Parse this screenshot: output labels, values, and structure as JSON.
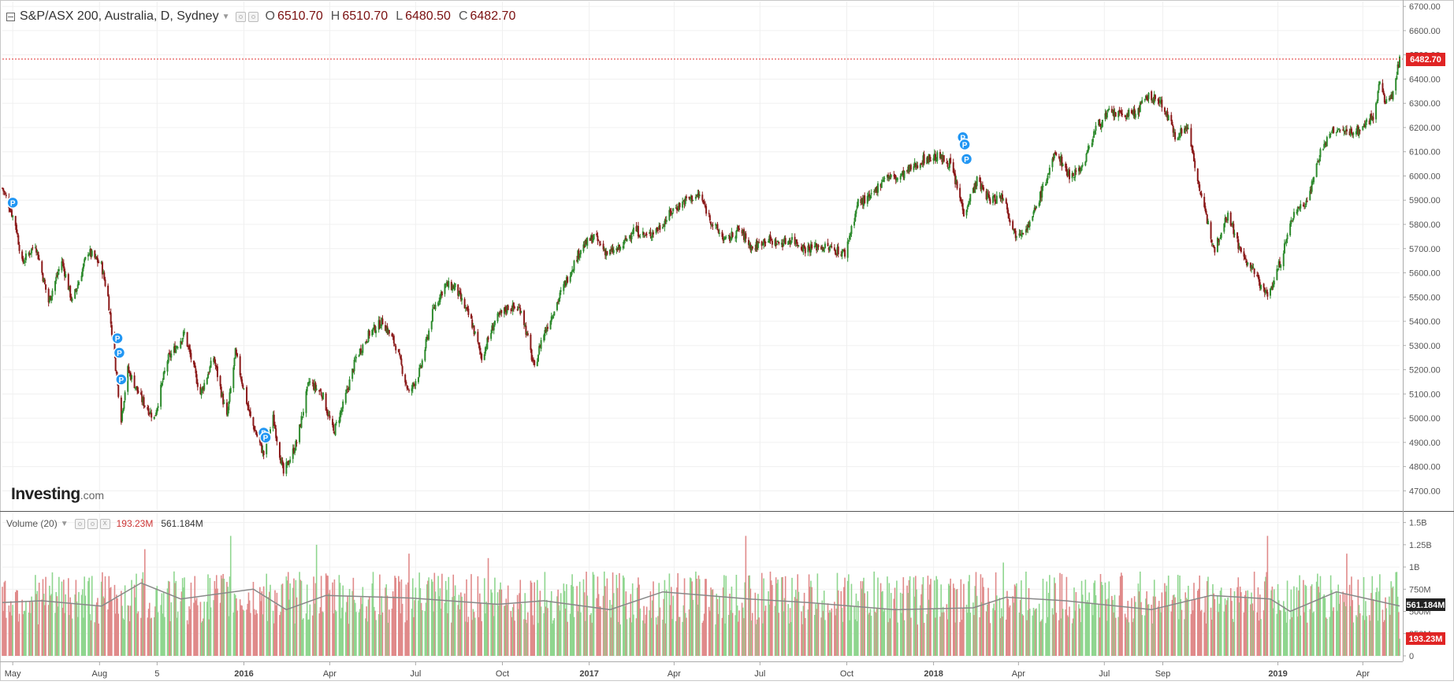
{
  "chart_title": "S&P/ASX 200, Australia, D, Sydney",
  "ohlc": {
    "open_label": "O",
    "open": "6510.70",
    "high_label": "H",
    "high": "6510.70",
    "low_label": "L",
    "low": "6480.50",
    "close_label": "C",
    "close": "6482.70"
  },
  "last_price_label": "6482.70",
  "volume_panel": {
    "title": "Volume (20)",
    "last_volume": "193.23M",
    "avg_volume": "561.184M",
    "close_x_glyph": "x"
  },
  "logo": {
    "main": "Investing",
    "suffix": ".com"
  },
  "colors": {
    "up": "#2e8b2e",
    "down": "#8b1a1a",
    "up_volume": "#8fd68f",
    "down_volume": "#e08a8a",
    "ma_line": "#888888",
    "price_line": "#e03030",
    "marker": "#2196f3"
  },
  "icons": [
    "collapse-icon",
    "settings-icon",
    "eye-icon",
    "close-icon",
    "dropdown-caret-icon",
    "event-marker-icon"
  ],
  "chart_data": [
    {
      "type": "line",
      "subtype": "candlestick",
      "title": "S&P/ASX 200, Australia, D, Sydney",
      "x_axis": {
        "type": "date",
        "range": [
          "2015-04-20",
          "2019-05-10"
        ],
        "tick_labels": [
          "May",
          "Aug",
          "5",
          "2016",
          "Apr",
          "Jul",
          "Oct",
          "2017",
          "Apr",
          "Jul",
          "Oct",
          "2018",
          "Apr",
          "Jul",
          "Sep",
          "2019",
          "Apr"
        ],
        "tick_dates": [
          "2015-05-01",
          "2015-08-01",
          "2015-10-01",
          "2016-01-01",
          "2016-04-01",
          "2016-07-01",
          "2016-10-01",
          "2017-01-01",
          "2017-04-01",
          "2017-07-01",
          "2017-10-01",
          "2018-01-01",
          "2018-04-01",
          "2018-07-01",
          "2018-09-01",
          "2019-01-01",
          "2019-04-01"
        ]
      },
      "y_axis": {
        "range": [
          4620,
          6720
        ],
        "ticks": [
          4700,
          4800,
          4900,
          5000,
          5100,
          5200,
          5300,
          5400,
          5500,
          5600,
          5700,
          5800,
          5900,
          6000,
          6100,
          6200,
          6300,
          6400,
          6500,
          6600,
          6700
        ],
        "tick_labels": [
          "4700.00",
          "4800.00",
          "4900.00",
          "5000.00",
          "5100.00",
          "5200.00",
          "5300.00",
          "5400.00",
          "5500.00",
          "5600.00",
          "5700.00",
          "5800.00",
          "5900.00",
          "6000.00",
          "6100.00",
          "6200.00",
          "6300.00",
          "6400.00",
          "6500.00",
          "6600.00",
          "6700.00"
        ],
        "position": "right"
      },
      "grid": true,
      "last_price": 6482.7,
      "close_path": [
        [
          "2015-04-20",
          5950
        ],
        [
          "2015-04-27",
          5880
        ],
        [
          "2015-05-04",
          5800
        ],
        [
          "2015-05-11",
          5640
        ],
        [
          "2015-05-25",
          5720
        ],
        [
          "2015-06-08",
          5480
        ],
        [
          "2015-06-22",
          5650
        ],
        [
          "2015-07-03",
          5480
        ],
        [
          "2015-07-20",
          5690
        ],
        [
          "2015-08-03",
          5630
        ],
        [
          "2015-08-10",
          5500
        ],
        [
          "2015-08-24",
          5000
        ],
        [
          "2015-08-31",
          5200
        ],
        [
          "2015-09-14",
          5080
        ],
        [
          "2015-09-28",
          5000
        ],
        [
          "2015-10-12",
          5240
        ],
        [
          "2015-10-30",
          5350
        ],
        [
          "2015-11-16",
          5100
        ],
        [
          "2015-11-30",
          5250
        ],
        [
          "2015-12-14",
          5000
        ],
        [
          "2015-12-23",
          5270
        ],
        [
          "2016-01-08",
          5000
        ],
        [
          "2016-01-22",
          4850
        ],
        [
          "2016-02-01",
          5000
        ],
        [
          "2016-02-12",
          4770
        ],
        [
          "2016-02-26",
          4900
        ],
        [
          "2016-03-10",
          5150
        ],
        [
          "2016-03-24",
          5100
        ],
        [
          "2016-04-05",
          4940
        ],
        [
          "2016-04-15",
          5050
        ],
        [
          "2016-04-29",
          5250
        ],
        [
          "2016-05-13",
          5350
        ],
        [
          "2016-05-27",
          5400
        ],
        [
          "2016-06-10",
          5300
        ],
        [
          "2016-06-24",
          5100
        ],
        [
          "2016-07-06",
          5200
        ],
        [
          "2016-07-20",
          5450
        ],
        [
          "2016-08-01",
          5550
        ],
        [
          "2016-08-12",
          5540
        ],
        [
          "2016-08-29",
          5400
        ],
        [
          "2016-09-09",
          5250
        ],
        [
          "2016-09-23",
          5400
        ],
        [
          "2016-10-07",
          5460
        ],
        [
          "2016-10-21",
          5450
        ],
        [
          "2016-11-04",
          5200
        ],
        [
          "2016-11-11",
          5320
        ],
        [
          "2016-11-25",
          5450
        ],
        [
          "2016-12-09",
          5580
        ],
        [
          "2016-12-23",
          5700
        ],
        [
          "2017-01-06",
          5750
        ],
        [
          "2017-01-20",
          5680
        ],
        [
          "2017-02-03",
          5700
        ],
        [
          "2017-02-17",
          5780
        ],
        [
          "2017-03-03",
          5750
        ],
        [
          "2017-03-17",
          5790
        ],
        [
          "2017-03-31",
          5860
        ],
        [
          "2017-04-13",
          5900
        ],
        [
          "2017-04-28",
          5920
        ],
        [
          "2017-05-12",
          5800
        ],
        [
          "2017-05-26",
          5730
        ],
        [
          "2017-06-09",
          5780
        ],
        [
          "2017-06-23",
          5700
        ],
        [
          "2017-07-07",
          5740
        ],
        [
          "2017-07-21",
          5720
        ],
        [
          "2017-08-04",
          5740
        ],
        [
          "2017-08-18",
          5700
        ],
        [
          "2017-09-01",
          5710
        ],
        [
          "2017-09-15",
          5700
        ],
        [
          "2017-09-29",
          5680
        ],
        [
          "2017-10-13",
          5890
        ],
        [
          "2017-10-27",
          5910
        ],
        [
          "2017-11-10",
          6000
        ],
        [
          "2017-11-24",
          5990
        ],
        [
          "2017-12-08",
          6030
        ],
        [
          "2017-12-22",
          6070
        ],
        [
          "2018-01-05",
          6080
        ],
        [
          "2018-01-19",
          6050
        ],
        [
          "2018-02-02",
          5850
        ],
        [
          "2018-02-16",
          5980
        ],
        [
          "2018-03-02",
          5900
        ],
        [
          "2018-03-16",
          5920
        ],
        [
          "2018-03-28",
          5760
        ],
        [
          "2018-04-13",
          5800
        ],
        [
          "2018-04-27",
          5950
        ],
        [
          "2018-05-11",
          6100
        ],
        [
          "2018-05-25",
          6000
        ],
        [
          "2018-06-08",
          6040
        ],
        [
          "2018-06-22",
          6200
        ],
        [
          "2018-07-06",
          6260
        ],
        [
          "2018-07-20",
          6250
        ],
        [
          "2018-08-03",
          6260
        ],
        [
          "2018-08-17",
          6330
        ],
        [
          "2018-08-31",
          6300
        ],
        [
          "2018-09-14",
          6170
        ],
        [
          "2018-09-28",
          6200
        ],
        [
          "2018-10-12",
          5900
        ],
        [
          "2018-10-26",
          5700
        ],
        [
          "2018-11-09",
          5850
        ],
        [
          "2018-11-23",
          5680
        ],
        [
          "2018-12-07",
          5600
        ],
        [
          "2018-12-21",
          5500
        ],
        [
          "2019-01-04",
          5650
        ],
        [
          "2019-01-18",
          5850
        ],
        [
          "2019-02-01",
          5900
        ],
        [
          "2019-02-15",
          6100
        ],
        [
          "2019-03-01",
          6190
        ],
        [
          "2019-03-15",
          6180
        ],
        [
          "2019-03-29",
          6190
        ],
        [
          "2019-04-12",
          6250
        ],
        [
          "2019-04-19",
          6380
        ],
        [
          "2019-04-26",
          6300
        ],
        [
          "2019-05-03",
          6340
        ],
        [
          "2019-05-10",
          6483
        ]
      ],
      "event_markers": [
        {
          "date": "2015-05-01",
          "label": "P",
          "value": 5890
        },
        {
          "date": "2015-08-20",
          "label": "P",
          "value": 5330
        },
        {
          "date": "2015-08-22",
          "label": "P",
          "value": 5270
        },
        {
          "date": "2015-08-24",
          "label": "P",
          "value": 5160
        },
        {
          "date": "2016-01-22",
          "label": "P",
          "value": 4940
        },
        {
          "date": "2016-01-24",
          "label": "P",
          "value": 4920
        },
        {
          "date": "2018-02-01",
          "label": "P",
          "value": 6160
        },
        {
          "date": "2018-02-03",
          "label": "P",
          "value": 6130
        },
        {
          "date": "2018-02-05",
          "label": "P",
          "value": 6070
        }
      ]
    },
    {
      "type": "bar",
      "title": "Volume (20)",
      "y_axis": {
        "range": [
          0,
          1550000000
        ],
        "ticks": [
          0,
          250000000,
          500000000,
          750000000,
          1000000000,
          1250000000,
          1500000000
        ],
        "tick_labels": [
          "0",
          "250M",
          "500M",
          "750M",
          "1B",
          "1.25B",
          "1.5B"
        ],
        "position": "right"
      },
      "typical_range": [
        350000000,
        950000000
      ],
      "spikes": [
        {
          "date": "2015-09-18",
          "value": 1200000000
        },
        {
          "date": "2015-12-18",
          "value": 1350000000
        },
        {
          "date": "2016-03-18",
          "value": 1250000000
        },
        {
          "date": "2016-06-24",
          "value": 1150000000
        },
        {
          "date": "2016-09-16",
          "value": 1100000000
        },
        {
          "date": "2017-06-16",
          "value": 1350000000
        },
        {
          "date": "2018-03-16",
          "value": 1050000000
        },
        {
          "date": "2018-12-21",
          "value": 1350000000
        },
        {
          "date": "2019-03-15",
          "value": 1150000000
        }
      ],
      "ma_period": 20,
      "ma_path": [
        [
          "2015-04-20",
          600000000
        ],
        [
          "2015-06-01",
          620000000
        ],
        [
          "2015-08-03",
          560000000
        ],
        [
          "2015-09-14",
          820000000
        ],
        [
          "2015-10-26",
          640000000
        ],
        [
          "2016-01-11",
          750000000
        ],
        [
          "2016-02-15",
          520000000
        ],
        [
          "2016-03-28",
          680000000
        ],
        [
          "2016-06-27",
          650000000
        ],
        [
          "2016-09-26",
          580000000
        ],
        [
          "2016-11-14",
          620000000
        ],
        [
          "2017-01-23",
          520000000
        ],
        [
          "2017-03-20",
          720000000
        ],
        [
          "2017-06-19",
          640000000
        ],
        [
          "2017-08-21",
          600000000
        ],
        [
          "2017-11-20",
          520000000
        ],
        [
          "2018-02-12",
          540000000
        ],
        [
          "2018-03-19",
          660000000
        ],
        [
          "2018-05-21",
          620000000
        ],
        [
          "2018-08-20",
          520000000
        ],
        [
          "2018-10-22",
          680000000
        ],
        [
          "2018-12-24",
          640000000
        ],
        [
          "2019-01-14",
          500000000
        ],
        [
          "2019-03-04",
          720000000
        ],
        [
          "2019-05-10",
          561184000
        ]
      ],
      "last_volume": 193230000,
      "avg_volume": 561184000
    }
  ]
}
